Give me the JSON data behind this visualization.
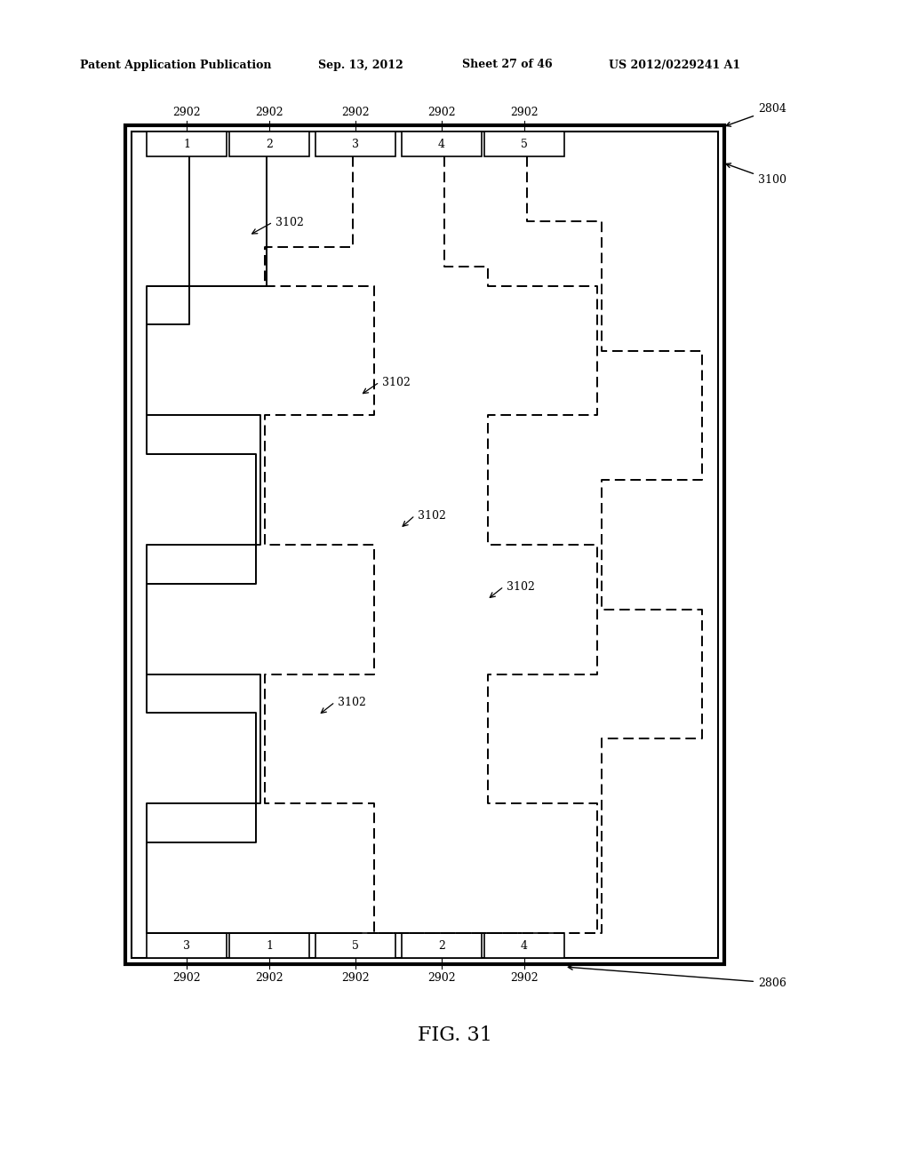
{
  "bg_color": "#ffffff",
  "line_color": "#000000",
  "header_text": "Patent Application Publication",
  "header_date": "Sep. 13, 2012",
  "header_sheet": "Sheet 27 of 46",
  "header_patent": "US 2012/0229241 A1",
  "figure_label": "FIG. 31",
  "top_slots": [
    "1",
    "2",
    "3",
    "4",
    "5"
  ],
  "top_slot_label": "2804",
  "right_label": "3100",
  "bottom_slots": [
    "3",
    "1",
    "5",
    "2",
    "4"
  ],
  "bottom_edge_label": "2806"
}
